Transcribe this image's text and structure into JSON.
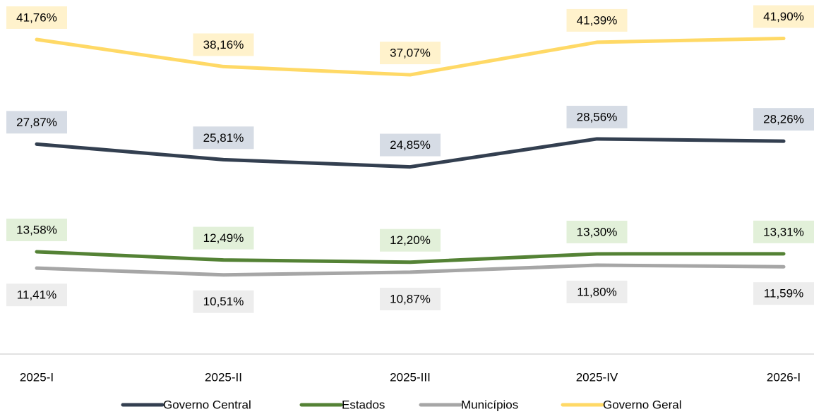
{
  "chart_data": {
    "type": "line",
    "categories": [
      "2025-I",
      "2025-II",
      "2025-III",
      "2025-IV",
      "2026-I"
    ],
    "ylim": [
      0,
      47
    ],
    "series": [
      {
        "name": "Governo Central",
        "color": "#333f50",
        "label_bg": "#d6dce5",
        "values": [
          27.87,
          25.81,
          24.85,
          28.56,
          28.26
        ],
        "value_labels": [
          "27,87%",
          "25,81%",
          "24,85%",
          "28,56%",
          "28,26%"
        ]
      },
      {
        "name": "Estados",
        "color": "#548235",
        "label_bg": "#e2f0d9",
        "values": [
          13.58,
          12.49,
          12.2,
          13.3,
          13.31
        ],
        "value_labels": [
          "13,58%",
          "12,49%",
          "12,20%",
          "13,30%",
          "13,31%"
        ]
      },
      {
        "name": "Municípios",
        "color": "#a6a6a6",
        "label_bg": "#ededed",
        "values": [
          11.41,
          10.51,
          10.87,
          11.8,
          11.59
        ],
        "value_labels": [
          "11,41%",
          "10,51%",
          "10,87%",
          "11,80%",
          "11,59%"
        ]
      },
      {
        "name": "Governo Geral",
        "color": "#ffd966",
        "label_bg": "#fff2cc",
        "values": [
          41.76,
          38.16,
          37.07,
          41.39,
          41.9
        ],
        "value_labels": [
          "41,76%",
          "38,16%",
          "37,07%",
          "41,39%",
          "41,90%"
        ]
      }
    ]
  }
}
